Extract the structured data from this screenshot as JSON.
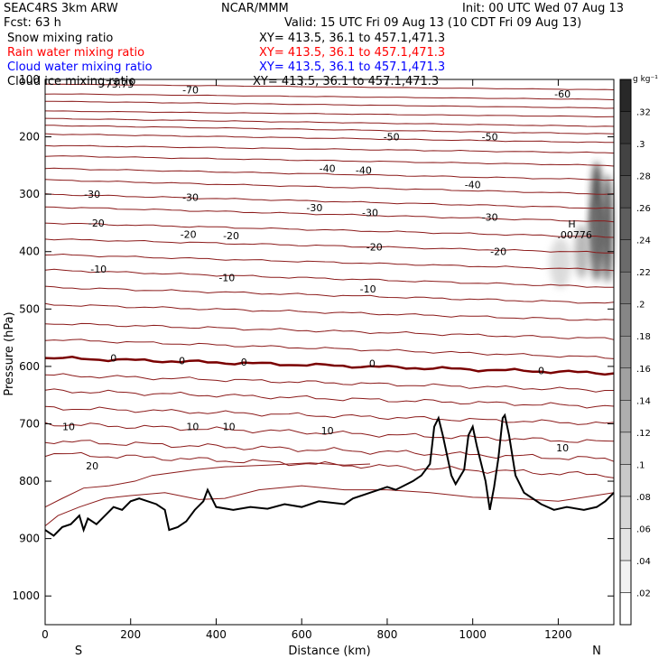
{
  "header": {
    "line1_left": "SEAC4RS   3km ARW",
    "line1_center": "NCAR/MMM",
    "line1_right": "Init: 00 UTC Wed 07 Aug 13",
    "line2_left": "Fcst:    63 h",
    "line2_right": "Valid: 15 UTC Fri 09 Aug 13 (10 CDT Fri 09 Aug 13)",
    "fields": [
      {
        "name": "Snow mixing ratio",
        "xy": "XY= 413.5, 36.1 to 457.1,471.3",
        "color": "#000000"
      },
      {
        "name": "Rain water mixing ratio",
        "xy": "XY= 413.5, 36.1 to 457.1,471.3",
        "color": "#ff0000"
      },
      {
        "name": "Cloud water mixing ratio",
        "xy": "XY= 413.5, 36.1 to 457.1,471.3",
        "color": "#0000ff"
      },
      {
        "name": "Cloud ice mixing ratio",
        "xy": "XY= 413.5, 36.1 to 457.1,471.3",
        "color": "#000000"
      }
    ]
  },
  "chart_data": {
    "type": "cross-section contour",
    "xlabel": "Distance (km)",
    "ylabel": "Pressure (hPa)",
    "xlim": [
      0,
      1330
    ],
    "ylim": [
      1050,
      100
    ],
    "xticks": [
      0,
      200,
      400,
      600,
      800,
      1000,
      1200
    ],
    "yticks": [
      100,
      200,
      300,
      400,
      500,
      600,
      700,
      800,
      900,
      1000
    ],
    "ytick_labels": [
      "100",
      "200",
      "300",
      "400",
      "500",
      "600",
      "700",
      "800",
      "900",
      "1000"
    ],
    "end_labels": {
      "left": "S",
      "right": "N"
    },
    "contour_color": "#8b1a1a",
    "zero_line_color": "#7a0000",
    "terrain_color": "#000000",
    "temperature_contours": [
      {
        "label": "-73.73",
        "x": 170,
        "p": 108
      },
      {
        "label": "-70",
        "x": 340,
        "p": 118
      },
      {
        "label": "-60",
        "x": 1210,
        "p": 125
      },
      {
        "label": "-50",
        "x": 810,
        "p": 200
      },
      {
        "label": "-50",
        "x": 1040,
        "p": 200
      },
      {
        "label": "-40",
        "x": 660,
        "p": 255
      },
      {
        "label": "-40",
        "x": 745,
        "p": 258
      },
      {
        "label": "-40",
        "x": 1000,
        "p": 283
      },
      {
        "label": "-30",
        "x": 110,
        "p": 300
      },
      {
        "label": "-30",
        "x": 340,
        "p": 305
      },
      {
        "label": "-30",
        "x": 630,
        "p": 323
      },
      {
        "label": "-30",
        "x": 760,
        "p": 332
      },
      {
        "label": "-30",
        "x": 1040,
        "p": 340
      },
      {
        "label": "-20",
        "x": 120,
        "p": 350
      },
      {
        "label": "-20",
        "x": 335,
        "p": 370
      },
      {
        "label": "-20",
        "x": 435,
        "p": 372
      },
      {
        "label": "-20",
        "x": 770,
        "p": 392
      },
      {
        "label": "-20",
        "x": 1060,
        "p": 400
      },
      {
        "label": "-10",
        "x": 125,
        "p": 430
      },
      {
        "label": "-10",
        "x": 425,
        "p": 445
      },
      {
        "label": "-10",
        "x": 755,
        "p": 465
      },
      {
        "label": "0",
        "x": 160,
        "p": 585
      },
      {
        "label": "0",
        "x": 320,
        "p": 590
      },
      {
        "label": "0",
        "x": 465,
        "p": 592
      },
      {
        "label": "0",
        "x": 765,
        "p": 595
      },
      {
        "label": "0",
        "x": 1160,
        "p": 607
      },
      {
        "label": "10",
        "x": 55,
        "p": 705
      },
      {
        "label": "10",
        "x": 345,
        "p": 705
      },
      {
        "label": "10",
        "x": 430,
        "p": 705
      },
      {
        "label": "10",
        "x": 660,
        "p": 712
      },
      {
        "label": "10",
        "x": 1210,
        "p": 742
      },
      {
        "label": "20",
        "x": 110,
        "p": 773
      }
    ],
    "ice_max_label": {
      "text": "H",
      "value": ".00776",
      "x": 1240,
      "p": 358
    },
    "colorbar": {
      "unit": "g kg⁻¹",
      "ticks": [
        ".02",
        ".04",
        ".06",
        ".08",
        ".1",
        ".12",
        ".14",
        ".16",
        ".18",
        ".2",
        ".22",
        ".24",
        ".26",
        ".28",
        ".3",
        ".32"
      ],
      "min": 0,
      "max": 0.34
    }
  }
}
